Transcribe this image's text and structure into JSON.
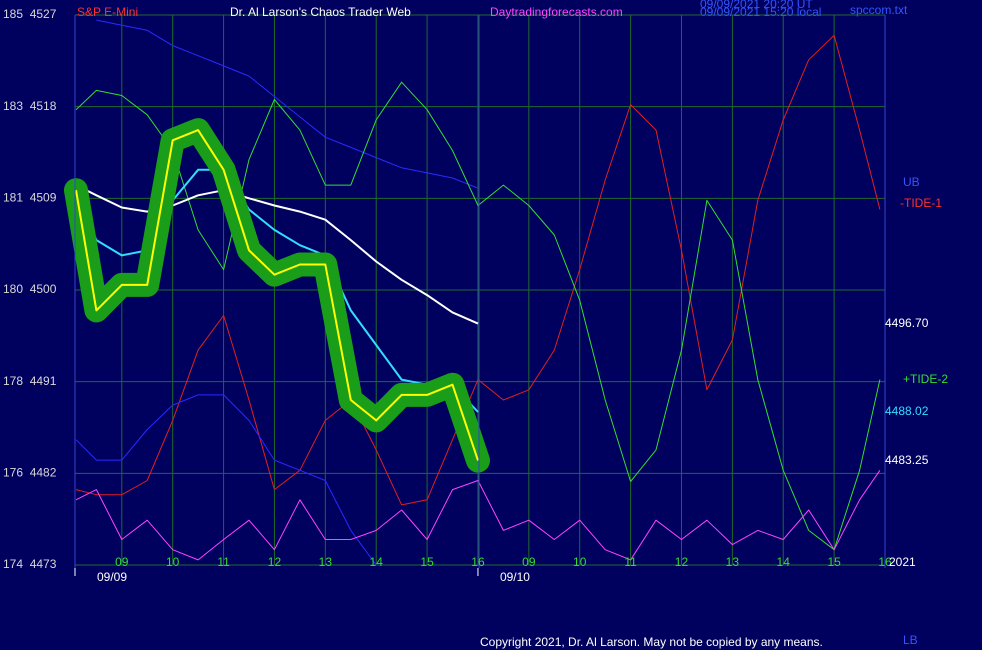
{
  "chart_data": {
    "type": "line",
    "title": "Dr. Al Larson's Chaos Trader Web",
    "instrument": "S&P E-Mini",
    "website": "Daytradingforecasts.com",
    "timestamp_lines": [
      "09/09/2021 20:20 UT",
      "09/09/2021 15:20 local"
    ],
    "file_name": "spccom.txt",
    "copyright": "Copyright 2021, Dr. Al Larson. May not be copied by any means.",
    "year_label": "2021",
    "x": [
      -0.9,
      -0.5,
      0,
      0.5,
      1,
      1.5,
      2,
      2.5,
      3,
      3.5,
      4,
      4.5,
      5,
      5.5,
      6,
      6.5,
      7,
      7.5,
      8,
      8.5,
      9,
      9.5,
      10,
      10.5,
      11,
      11.5,
      12,
      12.5,
      13,
      13.5,
      14,
      14.5,
      14.9
    ],
    "xlim": [
      -0.92,
      15.0
    ],
    "xticks": [
      {
        "value": 0,
        "label": "09"
      },
      {
        "value": 1,
        "label": "10"
      },
      {
        "value": 2,
        "label": "11"
      },
      {
        "value": 3,
        "label": "12"
      },
      {
        "value": 4,
        "label": "13"
      },
      {
        "value": 5,
        "label": "14"
      },
      {
        "value": 6,
        "label": "15"
      },
      {
        "value": 7,
        "label": "16"
      },
      {
        "value": 8,
        "label": "09"
      },
      {
        "value": 9,
        "label": "10"
      },
      {
        "value": 10,
        "label": "11"
      },
      {
        "value": 11,
        "label": "12"
      },
      {
        "value": 12,
        "label": "13"
      },
      {
        "value": 13,
        "label": "14"
      },
      {
        "value": 14,
        "label": "15"
      },
      {
        "value": 15,
        "label": "16"
      }
    ],
    "date_ticks": [
      {
        "value": -0.92,
        "label": "09/09"
      },
      {
        "value": 7,
        "label": "09/10"
      }
    ],
    "ylim": [
      4473,
      4527
    ],
    "yticks": [
      {
        "value": 4473,
        "label": "174  4473"
      },
      {
        "value": 4482,
        "label": "176  4482"
      },
      {
        "value": 4491,
        "label": "178  4491"
      },
      {
        "value": 4500,
        "label": "180  4500"
      },
      {
        "value": 4509,
        "label": "181  4509"
      },
      {
        "value": 4518,
        "label": "183  4518"
      },
      {
        "value": 4527,
        "label": "185  4527"
      }
    ],
    "grid": true,
    "series": [
      {
        "name": "UB",
        "color": "#2a2aff",
        "values": [
          null,
          4526.5,
          4526,
          4525.5,
          4524,
          4523,
          4522,
          4521,
          4519,
          4517,
          4515,
          4514,
          4513,
          4512,
          4511.5,
          4511,
          4510,
          null,
          null,
          null,
          null,
          null,
          null,
          null,
          null,
          null,
          null,
          null,
          null,
          null,
          null,
          null,
          null
        ]
      },
      {
        "name": "-TIDE-1",
        "color": "#e02020",
        "values": [
          4480.4,
          4479.9,
          4479.9,
          4481.3,
          4487.2,
          4494.1,
          4497.5,
          4489.2,
          4480.4,
          4482.3,
          4487.2,
          4489.2,
          4484.3,
          4478.9,
          4479.4,
          4485.3,
          4491.2,
          4489.2,
          4490.2,
          4494.1,
          4502.0,
          4510.8,
          4518.2,
          4515.7,
          4503.9,
          4490.2,
          4495.1,
          4508.8,
          4516.7,
          4522.6,
          4525.0,
          4515.7,
          4507.9
        ]
      },
      {
        "name": "+TIDE-2",
        "color": "#33dd33",
        "values": [
          4517.7,
          4519.6,
          4519.1,
          4517.2,
          4513.7,
          4505.9,
          4502.0,
          4512.8,
          4518.7,
          4515.7,
          4510.3,
          4510.3,
          4516.7,
          4520.4,
          4517.7,
          4513.7,
          4508.3,
          4510.3,
          4508.3,
          4505.4,
          4499.0,
          4489.2,
          4481.2,
          4484.3,
          4494.1,
          4508.8,
          4504.9,
          4491.2,
          4482.3,
          4476.4,
          4474.5,
          4482.3,
          4491.2
        ]
      },
      {
        "name": "LB",
        "color": "#2a2aff",
        "values": [
          4485.3,
          4483.3,
          4483.3,
          4486.3,
          4488.7,
          4489.7,
          4489.7,
          4487.2,
          4483.3,
          4482.3,
          4481.3,
          4476.4,
          4473.0,
          null,
          null,
          null,
          null,
          null,
          null,
          null,
          null,
          null,
          null,
          null,
          null,
          null,
          null,
          null,
          null,
          null,
          null,
          null,
          null
        ]
      },
      {
        "color": "#ff44ff",
        "width": 1,
        "values": [
          4479.4,
          4480.4,
          4475.5,
          4477.4,
          4474.5,
          4473.5,
          4475.5,
          4477.4,
          4474.5,
          4479.4,
          4475.5,
          4475.5,
          4476.4,
          4478.4,
          4475.5,
          4480.4,
          4481.3,
          4476.4,
          4477.4,
          4475.5,
          4477.4,
          4474.5,
          4473.5,
          4477.4,
          4475.5,
          4477.4,
          4475.0,
          4476.4,
          4475.5,
          4478.4,
          4474.5,
          4479.4,
          4482.3
        ]
      },
      {
        "color": "#ffffff",
        "width": 2,
        "last_label": "4496.70",
        "values": [
          4510.3,
          4509.3,
          4508.1,
          4507.7,
          4508.3,
          4509.3,
          4509.8,
          4509.0,
          4508.3,
          4507.7,
          4506.9,
          4504.9,
          4502.8,
          4501.0,
          4499.5,
          4497.8,
          4496.7,
          null,
          null,
          null,
          null,
          null,
          null,
          null,
          null,
          null,
          null,
          null,
          null,
          null,
          null,
          null,
          null
        ]
      },
      {
        "color": "#33ddff",
        "width": 2,
        "last_label": "4488.02",
        "values": [
          4509.3,
          4504.9,
          4503.4,
          4503.9,
          4508.8,
          4511.8,
          4511.8,
          4507.9,
          4505.9,
          4504.4,
          4503.4,
          4498.0,
          4494.6,
          4491.2,
          4490.7,
          4490.7,
          4488.02,
          null,
          null,
          null,
          null,
          null,
          null,
          null,
          null,
          null,
          null,
          null,
          null,
          null,
          null,
          null,
          null
        ]
      },
      {
        "color": "#ffff00",
        "width": 2,
        "halo_color": "#1a9e1a",
        "last_label": "4483.25",
        "values": [
          4509.8,
          4498.0,
          4500.5,
          4500.5,
          4514.7,
          4515.7,
          4511.8,
          4503.9,
          4501.5,
          4502.5,
          4502.5,
          4489.2,
          4487.2,
          4489.7,
          4489.7,
          4490.7,
          4483.25,
          null,
          null,
          null,
          null,
          null,
          null,
          null,
          null,
          null,
          null,
          null,
          null,
          null,
          null,
          null,
          null
        ]
      }
    ]
  }
}
